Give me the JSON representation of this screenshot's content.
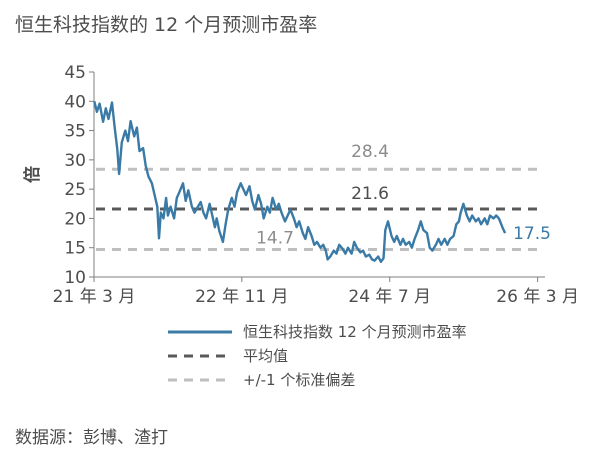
{
  "title": "恒生科技指数的 12 个月预测市盈率",
  "source": "数据源：彭博、渣打",
  "chart_data": {
    "type": "line",
    "title": "恒生科技指数的 12 个月预测市盈率",
    "ylabel": "倍",
    "ylim": [
      10,
      45
    ],
    "yticks": [
      10,
      15,
      20,
      25,
      30,
      35,
      40,
      45
    ],
    "xlim": [
      2021.167,
      2026.25
    ],
    "xticks": [
      {
        "x": 2021.167,
        "label": "21 年 3 月"
      },
      {
        "x": 2022.833,
        "label": "22 年 11 月"
      },
      {
        "x": 2024.5,
        "label": "24 年 7 月"
      },
      {
        "x": 2026.167,
        "label": "26 年 3 月"
      }
    ],
    "grid": false,
    "legend_position": "bottom",
    "series": [
      {
        "name": "恒生科技指数 12 个月预测市盈率",
        "color": "#3a7aa6",
        "last_value_label": "17.5",
        "points": [
          [
            2021.17,
            40.0
          ],
          [
            2021.2,
            38.2
          ],
          [
            2021.23,
            39.6
          ],
          [
            2021.27,
            36.5
          ],
          [
            2021.3,
            38.8
          ],
          [
            2021.33,
            37.0
          ],
          [
            2021.37,
            39.8
          ],
          [
            2021.4,
            35.5
          ],
          [
            2021.43,
            31.8
          ],
          [
            2021.45,
            27.6
          ],
          [
            2021.48,
            33.0
          ],
          [
            2021.52,
            35.0
          ],
          [
            2021.55,
            33.2
          ],
          [
            2021.58,
            36.6
          ],
          [
            2021.62,
            34.0
          ],
          [
            2021.65,
            35.5
          ],
          [
            2021.68,
            31.5
          ],
          [
            2021.72,
            32.0
          ],
          [
            2021.75,
            29.0
          ],
          [
            2021.78,
            27.2
          ],
          [
            2021.82,
            26.0
          ],
          [
            2021.85,
            24.0
          ],
          [
            2021.88,
            22.0
          ],
          [
            2021.9,
            16.6
          ],
          [
            2021.92,
            21.0
          ],
          [
            2021.95,
            20.0
          ],
          [
            2021.98,
            23.5
          ],
          [
            2022.0,
            20.5
          ],
          [
            2022.03,
            22.0
          ],
          [
            2022.07,
            20.0
          ],
          [
            2022.1,
            23.5
          ],
          [
            2022.13,
            24.5
          ],
          [
            2022.17,
            26.0
          ],
          [
            2022.2,
            23.0
          ],
          [
            2022.23,
            24.8
          ],
          [
            2022.27,
            22.0
          ],
          [
            2022.3,
            21.0
          ],
          [
            2022.33,
            21.8
          ],
          [
            2022.37,
            22.8
          ],
          [
            2022.4,
            21.0
          ],
          [
            2022.43,
            20.0
          ],
          [
            2022.47,
            22.5
          ],
          [
            2022.5,
            20.5
          ],
          [
            2022.53,
            18.5
          ],
          [
            2022.55,
            20.0
          ],
          [
            2022.58,
            17.8
          ],
          [
            2022.62,
            16.0
          ],
          [
            2022.65,
            19.0
          ],
          [
            2022.68,
            21.5
          ],
          [
            2022.72,
            23.5
          ],
          [
            2022.75,
            22.0
          ],
          [
            2022.78,
            24.5
          ],
          [
            2022.82,
            26.0
          ],
          [
            2022.85,
            25.0
          ],
          [
            2022.88,
            24.0
          ],
          [
            2022.92,
            25.5
          ],
          [
            2022.95,
            23.0
          ],
          [
            2022.98,
            21.5
          ],
          [
            2023.02,
            24.0
          ],
          [
            2023.05,
            22.5
          ],
          [
            2023.08,
            20.0
          ],
          [
            2023.12,
            22.0
          ],
          [
            2023.15,
            21.0
          ],
          [
            2023.18,
            23.5
          ],
          [
            2023.22,
            21.5
          ],
          [
            2023.25,
            22.5
          ],
          [
            2023.28,
            21.0
          ],
          [
            2023.32,
            19.5
          ],
          [
            2023.35,
            20.5
          ],
          [
            2023.38,
            21.5
          ],
          [
            2023.42,
            20.0
          ],
          [
            2023.45,
            18.5
          ],
          [
            2023.48,
            19.5
          ],
          [
            2023.52,
            17.5
          ],
          [
            2023.55,
            16.5
          ],
          [
            2023.58,
            18.5
          ],
          [
            2023.62,
            17.0
          ],
          [
            2023.65,
            15.5
          ],
          [
            2023.68,
            16.0
          ],
          [
            2023.72,
            15.0
          ],
          [
            2023.75,
            15.5
          ],
          [
            2023.78,
            14.5
          ],
          [
            2023.8,
            13.0
          ],
          [
            2023.83,
            13.5
          ],
          [
            2023.87,
            14.5
          ],
          [
            2023.9,
            14.0
          ],
          [
            2023.93,
            15.5
          ],
          [
            2023.97,
            14.8
          ],
          [
            2024.0,
            14.0
          ],
          [
            2024.03,
            15.0
          ],
          [
            2024.07,
            14.0
          ],
          [
            2024.1,
            16.0
          ],
          [
            2024.13,
            15.0
          ],
          [
            2024.17,
            14.2
          ],
          [
            2024.2,
            14.5
          ],
          [
            2024.23,
            13.5
          ],
          [
            2024.27,
            13.8
          ],
          [
            2024.3,
            13.0
          ],
          [
            2024.33,
            12.8
          ],
          [
            2024.37,
            13.5
          ],
          [
            2024.4,
            12.6
          ],
          [
            2024.43,
            13.2
          ],
          [
            2024.45,
            18.0
          ],
          [
            2024.48,
            19.5
          ],
          [
            2024.52,
            17.0
          ],
          [
            2024.55,
            16.0
          ],
          [
            2024.58,
            17.0
          ],
          [
            2024.62,
            15.5
          ],
          [
            2024.65,
            16.5
          ],
          [
            2024.68,
            15.5
          ],
          [
            2024.72,
            16.0
          ],
          [
            2024.75,
            15.0
          ],
          [
            2024.78,
            16.5
          ],
          [
            2024.82,
            18.0
          ],
          [
            2024.85,
            19.5
          ],
          [
            2024.88,
            18.0
          ],
          [
            2024.92,
            17.5
          ],
          [
            2024.95,
            15.0
          ],
          [
            2024.98,
            14.5
          ],
          [
            2025.02,
            15.5
          ],
          [
            2025.05,
            16.5
          ],
          [
            2025.08,
            15.5
          ],
          [
            2025.12,
            16.5
          ],
          [
            2025.15,
            15.5
          ],
          [
            2025.18,
            16.5
          ],
          [
            2025.22,
            17.0
          ],
          [
            2025.25,
            19.0
          ],
          [
            2025.28,
            19.5
          ],
          [
            2025.3,
            21.0
          ],
          [
            2025.33,
            22.5
          ],
          [
            2025.37,
            20.5
          ],
          [
            2025.4,
            19.5
          ],
          [
            2025.43,
            20.5
          ],
          [
            2025.47,
            19.5
          ],
          [
            2025.5,
            20.0
          ],
          [
            2025.53,
            19.0
          ],
          [
            2025.57,
            20.0
          ],
          [
            2025.6,
            19.0
          ],
          [
            2025.63,
            20.5
          ],
          [
            2025.67,
            20.0
          ],
          [
            2025.7,
            20.5
          ],
          [
            2025.73,
            20.0
          ],
          [
            2025.77,
            18.5
          ],
          [
            2025.8,
            17.5
          ]
        ]
      },
      {
        "name": "平均值",
        "value": 21.6,
        "style": "dashed",
        "color": "#595959",
        "value_label": "21.6"
      },
      {
        "name": "+/-1 个标准偏差",
        "values": [
          28.4,
          14.7
        ],
        "style": "dashed",
        "color": "#bfbfbf",
        "value_labels": [
          "28.4",
          "14.7"
        ]
      }
    ]
  }
}
